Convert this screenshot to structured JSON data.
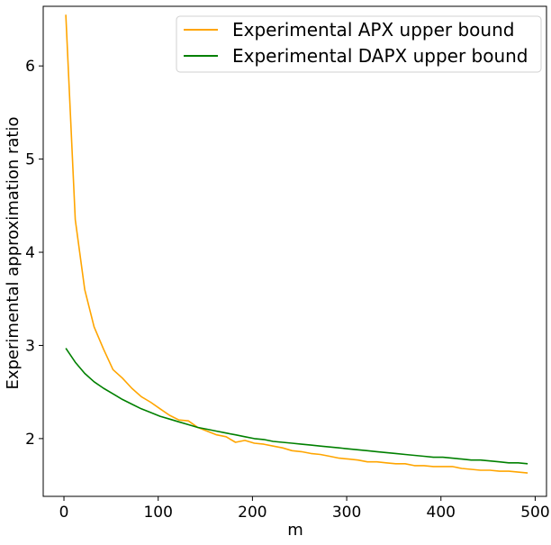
{
  "chart_data": {
    "type": "line",
    "title": "",
    "xlabel": "m",
    "ylabel": "Experimental approximation ratio",
    "xlim": [
      -22,
      512
    ],
    "ylim": [
      1.38,
      6.64
    ],
    "xticks": [
      0,
      100,
      200,
      300,
      400,
      500
    ],
    "yticks": [
      2,
      3,
      4,
      5,
      6
    ],
    "grid": false,
    "legend_position": "top-right",
    "series": [
      {
        "name": "Experimental APX upper bound",
        "color": "#ffa500",
        "x": [
          2,
          12,
          22,
          32,
          42,
          52,
          62,
          72,
          82,
          92,
          102,
          112,
          122,
          132,
          142,
          152,
          162,
          172,
          182,
          192,
          202,
          212,
          222,
          232,
          242,
          252,
          262,
          272,
          282,
          292,
          302,
          312,
          322,
          332,
          342,
          352,
          362,
          372,
          382,
          392,
          402,
          412,
          422,
          432,
          442,
          452,
          462,
          472,
          482,
          492
        ],
        "y": [
          6.55,
          4.35,
          3.6,
          3.2,
          2.96,
          2.74,
          2.65,
          2.54,
          2.45,
          2.39,
          2.32,
          2.25,
          2.2,
          2.19,
          2.12,
          2.08,
          2.04,
          2.02,
          1.96,
          1.98,
          1.95,
          1.94,
          1.92,
          1.9,
          1.87,
          1.86,
          1.84,
          1.83,
          1.81,
          1.79,
          1.78,
          1.77,
          1.75,
          1.75,
          1.74,
          1.73,
          1.73,
          1.71,
          1.71,
          1.7,
          1.7,
          1.7,
          1.68,
          1.67,
          1.66,
          1.66,
          1.65,
          1.65,
          1.64,
          1.63
        ]
      },
      {
        "name": "Experimental DAPX upper bound",
        "color": "#008000",
        "x": [
          2,
          12,
          22,
          32,
          42,
          52,
          62,
          72,
          82,
          92,
          102,
          112,
          122,
          132,
          142,
          152,
          162,
          172,
          182,
          192,
          202,
          212,
          222,
          232,
          242,
          252,
          262,
          272,
          282,
          292,
          302,
          312,
          322,
          332,
          342,
          352,
          362,
          372,
          382,
          392,
          402,
          412,
          422,
          432,
          442,
          452,
          462,
          472,
          482,
          492
        ],
        "y": [
          2.97,
          2.82,
          2.7,
          2.61,
          2.54,
          2.48,
          2.42,
          2.37,
          2.32,
          2.28,
          2.24,
          2.21,
          2.18,
          2.15,
          2.12,
          2.1,
          2.08,
          2.06,
          2.04,
          2.02,
          2.0,
          1.99,
          1.97,
          1.96,
          1.95,
          1.94,
          1.93,
          1.92,
          1.91,
          1.9,
          1.89,
          1.88,
          1.87,
          1.86,
          1.85,
          1.84,
          1.83,
          1.82,
          1.81,
          1.8,
          1.8,
          1.79,
          1.78,
          1.77,
          1.77,
          1.76,
          1.75,
          1.74,
          1.74,
          1.73
        ]
      }
    ]
  }
}
